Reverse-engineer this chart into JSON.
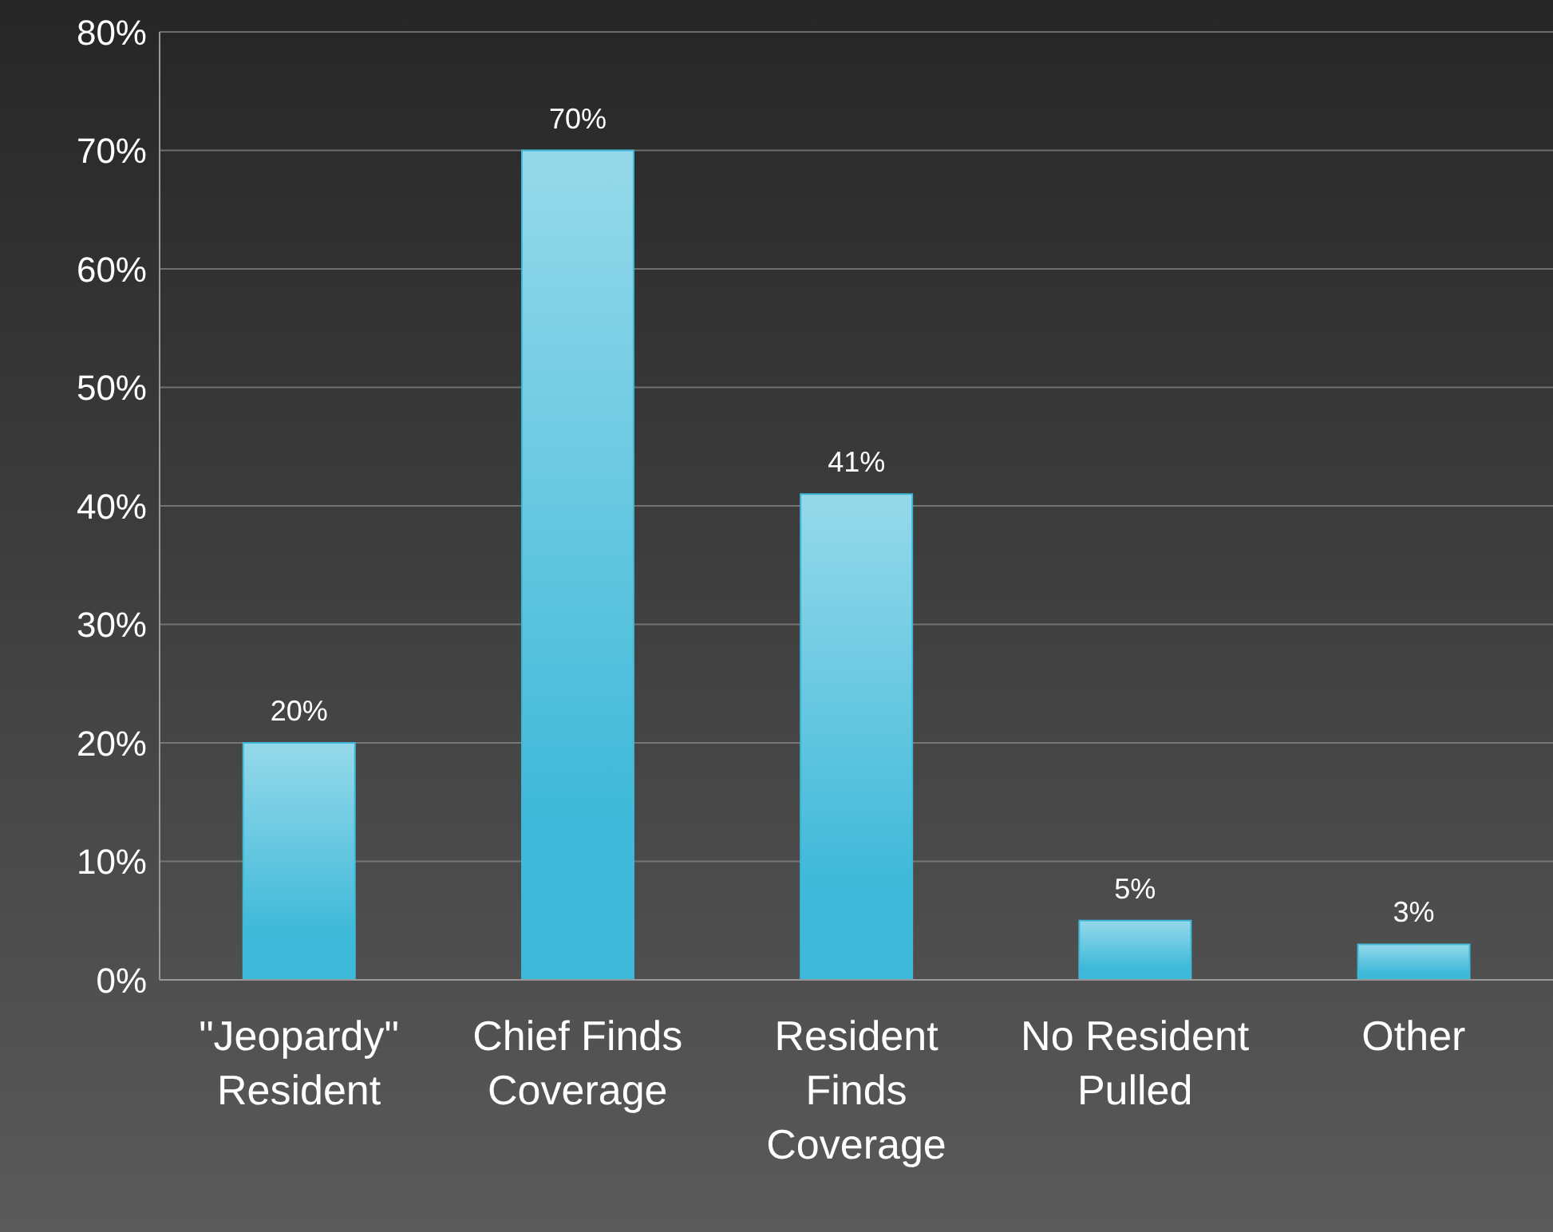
{
  "chart_data": {
    "type": "bar",
    "categories": [
      "\"Jeopardy\" Resident",
      "Chief Finds Coverage",
      "Resident Finds Coverage",
      "No Resident Pulled",
      "Other"
    ],
    "values": [
      20,
      70,
      41,
      5,
      3
    ],
    "value_labels": [
      "20%",
      "70%",
      "41%",
      "5%",
      "3%"
    ],
    "color": "#3fb9d9",
    "ylim": [
      0,
      80
    ],
    "yticks": [
      {
        "value": 0,
        "label": "0%"
      },
      {
        "value": 10,
        "label": "10%"
      },
      {
        "value": 20,
        "label": "20%"
      },
      {
        "value": 30,
        "label": "30%"
      },
      {
        "value": 40,
        "label": "40%"
      },
      {
        "value": 50,
        "label": "50%"
      },
      {
        "value": 60,
        "label": "60%"
      },
      {
        "value": 70,
        "label": "70%"
      },
      {
        "value": 80,
        "label": "80%"
      }
    ],
    "grid": "y",
    "legend": false
  }
}
